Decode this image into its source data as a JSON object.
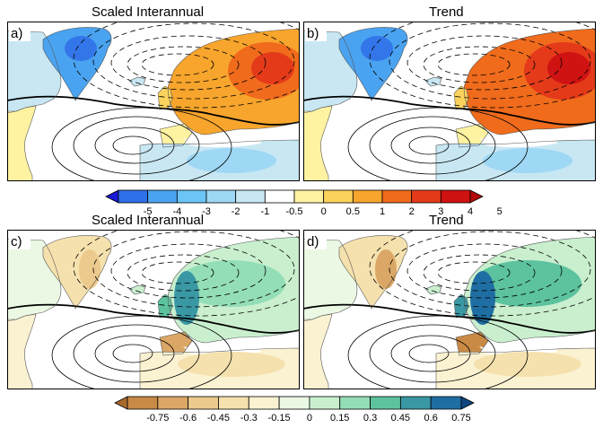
{
  "panels": [
    {
      "id": "a",
      "label": "a)",
      "title": "Scaled Interannual",
      "variable": "temperature",
      "intensity": 1.0
    },
    {
      "id": "b",
      "label": "b)",
      "title": "Trend",
      "variable": "temperature",
      "intensity": 1.35
    },
    {
      "id": "c",
      "label": "c)",
      "title": "Scaled Interannual",
      "variable": "precipitation",
      "intensity": 1.0
    },
    {
      "id": "d",
      "label": "d)",
      "title": "Trend",
      "variable": "precipitation",
      "intensity": 1.3
    }
  ],
  "colorbars": {
    "temperature": {
      "labels": [
        "-5",
        "-4",
        "-3",
        "-2",
        "-1",
        "-0.5",
        "0",
        "0.5",
        "1",
        "2",
        "3",
        "4",
        "5"
      ],
      "colors": [
        "#1a1ad6",
        "#2f6fe8",
        "#4aa3f0",
        "#6cc4f7",
        "#9fd8f4",
        "#c8e7f3",
        "#ffffff",
        "#fff3a2",
        "#fbd35c",
        "#f7a52d",
        "#f06b1c",
        "#e43a1a",
        "#cf1212",
        "#b30a0a"
      ]
    },
    "precipitation": {
      "labels": [
        "-0.75",
        "-0.6",
        "-0.45",
        "-0.3",
        "-0.15",
        "0",
        "0.15",
        "0.3",
        "0.45",
        "0.6",
        "0.75"
      ],
      "colors": [
        "#a86a2b",
        "#c88a45",
        "#dba766",
        "#ecc98c",
        "#f5e1ad",
        "#fbf2d2",
        "#eaf8e4",
        "#c9efcf",
        "#93deb6",
        "#5cc39e",
        "#3a98a4",
        "#1f6ea3",
        "#0f4680"
      ]
    }
  }
}
